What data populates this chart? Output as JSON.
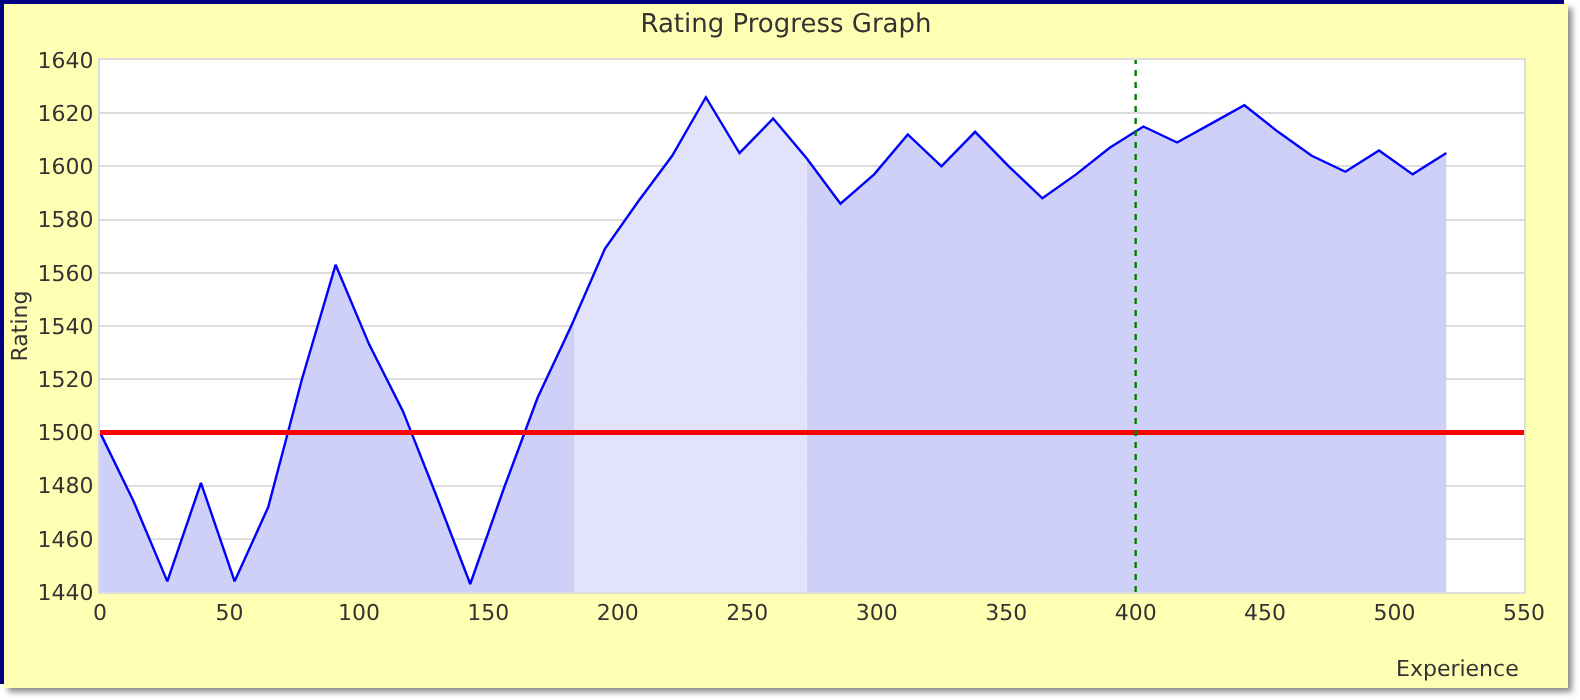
{
  "chart_data": {
    "type": "area",
    "title": "Rating Progress Graph",
    "xlabel": "Experience",
    "ylabel": "Rating",
    "x": [
      0,
      13,
      26,
      39,
      52,
      65,
      78,
      91,
      104,
      117,
      130,
      143,
      156,
      169,
      182,
      195,
      208,
      221,
      234,
      247,
      260,
      273,
      286,
      299,
      312,
      325,
      338,
      351,
      364,
      377,
      390,
      403,
      416,
      429,
      442,
      455,
      468,
      481,
      494,
      507,
      520
    ],
    "series": [
      {
        "color": "#0000ff",
        "values": [
          1500,
          1474,
          1444,
          1481,
          1444,
          1472,
          1520,
          1563,
          1533,
          1508,
          1476,
          1443,
          1479,
          1513,
          1540,
          1569,
          1587,
          1604,
          1626,
          1605,
          1618,
          1603,
          1586,
          1597,
          1612,
          1600,
          1613,
          1600,
          1588,
          1597,
          1607,
          1615,
          1609,
          1616,
          1623,
          1613,
          1604,
          1598,
          1606,
          1597,
          1605
        ]
      }
    ],
    "xlim": [
      0,
      550
    ],
    "xticks": [
      0,
      50,
      100,
      150,
      200,
      250,
      300,
      350,
      400,
      450,
      500,
      550
    ],
    "ylim": [
      1440,
      1640
    ],
    "yticks": [
      1440,
      1460,
      1480,
      1500,
      1520,
      1540,
      1560,
      1580,
      1600,
      1620,
      1640
    ],
    "ref_lines": [
      {
        "axis": "y",
        "value": 1500,
        "color": "#ff0000",
        "line_style": "solid"
      },
      {
        "axis": "x",
        "value": 400,
        "color": "#008000",
        "line_style": "dotted"
      }
    ],
    "bands": [
      {
        "axis": "x",
        "from": 183,
        "to": 273,
        "color": "#e2e2fa"
      }
    ],
    "grid": "y",
    "legend": false
  }
}
